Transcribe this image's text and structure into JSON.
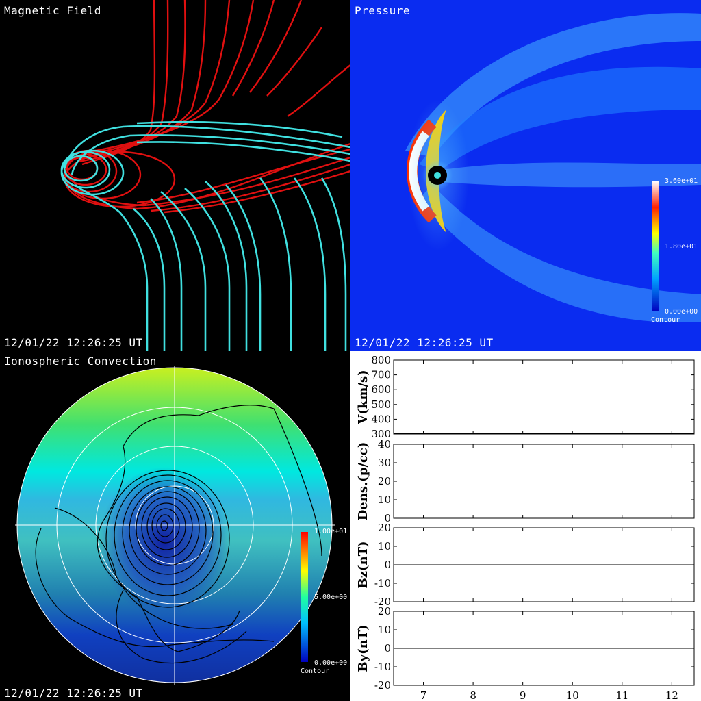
{
  "panels": {
    "magnetic": {
      "title": "Magnetic Field",
      "timestamp": "12/01/22 12:26:25 UT"
    },
    "pressure": {
      "title": "Pressure",
      "timestamp": "12/01/22 12:26:25 UT",
      "colorbar": {
        "max": "3.60e+01",
        "mid": "1.80e+01",
        "min": "0.00e+00",
        "label": "Contour"
      }
    },
    "ionosphere": {
      "title": "Ionospheric Convection",
      "timestamp": "12/01/22 12:26:25 UT",
      "colorbar": {
        "max": "1.00e+01",
        "mid": "5.00e+00",
        "min": "0.00e+00",
        "label": "Contour"
      }
    }
  },
  "colors": {
    "closed_field": "#e01010",
    "open_field": "#40e0e0",
    "solar_wind_bg": "#0a2cf0"
  },
  "chart_data": [
    {
      "type": "line",
      "ylabel": "V(km/s)",
      "ylim": [
        300,
        800
      ],
      "yticks": [
        300,
        400,
        500,
        600,
        700,
        800
      ],
      "xlim": [
        6.4,
        12.45
      ],
      "xticks": [
        7,
        8,
        9,
        10,
        11,
        12
      ],
      "series": []
    },
    {
      "type": "line",
      "ylabel": "Dens.(p/cc)",
      "ylim": [
        0,
        40
      ],
      "yticks": [
        0,
        10,
        20,
        30,
        40
      ],
      "xlim": [
        6.4,
        12.45
      ],
      "xticks": [
        7,
        8,
        9,
        10,
        11,
        12
      ],
      "series": []
    },
    {
      "type": "line",
      "ylabel": "Bz(nT)",
      "ylim": [
        -20,
        20
      ],
      "yticks": [
        -20,
        -10,
        0,
        10,
        20
      ],
      "xlim": [
        6.4,
        12.45
      ],
      "xticks": [
        7,
        8,
        9,
        10,
        11,
        12
      ],
      "zero_line": true,
      "series": []
    },
    {
      "type": "line",
      "ylabel": "By(nT)",
      "ylim": [
        -20,
        20
      ],
      "yticks": [
        -20,
        -10,
        0,
        10,
        20
      ],
      "xlim": [
        6.4,
        12.45
      ],
      "xticks": [
        7,
        8,
        9,
        10,
        11,
        12
      ],
      "zero_line": true,
      "series": []
    }
  ]
}
